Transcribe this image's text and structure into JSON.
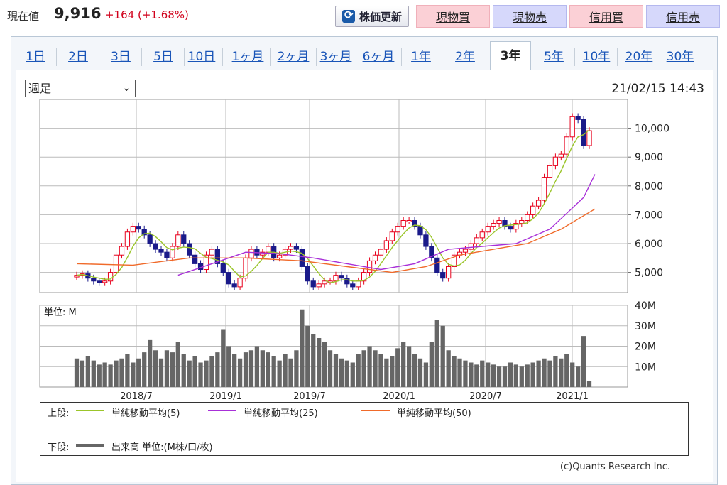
{
  "header": {
    "price_label": "現在値",
    "price_value": "9,916",
    "price_change": "+164 (+1.68%)",
    "refresh_label": "株価更新",
    "trade_buttons": [
      {
        "label": "現物買",
        "kind": "buy"
      },
      {
        "label": "現物売",
        "kind": "sell"
      },
      {
        "label": "信用買",
        "kind": "buy"
      },
      {
        "label": "信用売",
        "kind": "sell"
      }
    ]
  },
  "tabs": {
    "items": [
      "1日",
      "2日",
      "3日",
      "5日",
      "10日",
      "1ヶ月",
      "2ヶ月",
      "3ヶ月",
      "6ヶ月",
      "1年",
      "2年",
      "3年",
      "5年",
      "10年",
      "20年",
      "30年"
    ],
    "active": "3年"
  },
  "chart_controls": {
    "period_select": "週足",
    "timestamp": "21/02/15 14:43"
  },
  "colors": {
    "up_candle": "#e8001c",
    "down_candle": "#1a1a8a",
    "ma5": "#9bc52a",
    "ma25": "#a830d8",
    "ma50": "#f06a2a",
    "volume": "#666666"
  },
  "chart_data": [
    {
      "type": "candlestick",
      "x_ticks": [
        "2018/7",
        "2019/1",
        "2019/7",
        "2020/1",
        "2020/7",
        "2021/1"
      ],
      "y_ticks": [
        "5,000",
        "6,000",
        "7,000",
        "8,000",
        "9,000",
        "10,000"
      ],
      "ylim": [
        4300,
        11000
      ],
      "grid": true,
      "close_series": [
        4900,
        4950,
        4800,
        4700,
        4650,
        4700,
        5000,
        5600,
        5900,
        6400,
        6600,
        6500,
        6300,
        6000,
        5800,
        5700,
        5500,
        5900,
        6300,
        6000,
        5600,
        5300,
        5100,
        5600,
        5800,
        5300,
        5000,
        4600,
        4500,
        4800,
        5500,
        5800,
        5600,
        5700,
        5900,
        5500,
        5600,
        5800,
        5900,
        5800,
        5200,
        4700,
        4500,
        4600,
        4700,
        4700,
        4900,
        4800,
        4600,
        4500,
        4700,
        5000,
        5400,
        5600,
        5800,
        6100,
        6400,
        6600,
        6800,
        6800,
        6600,
        6300,
        5900,
        5500,
        5000,
        4800,
        5200,
        5600,
        5700,
        5800,
        6000,
        6200,
        6400,
        6600,
        6700,
        6800,
        6600,
        6500,
        6700,
        6800,
        7000,
        7300,
        7500,
        8300,
        8700,
        9000,
        9100,
        9700,
        10400,
        10300,
        9400,
        9916
      ],
      "series_legend": [
        {
          "name": "単純移動平均(5)",
          "color_key": "ma5"
        },
        {
          "name": "単純移動平均(25)",
          "color_key": "ma25"
        },
        {
          "name": "単純移動平均(50)",
          "color_key": "ma50"
        }
      ],
      "ma25_points": [
        [
          18,
          4900
        ],
        [
          24,
          5300
        ],
        [
          30,
          5700
        ],
        [
          36,
          5650
        ],
        [
          42,
          5500
        ],
        [
          48,
          5300
        ],
        [
          54,
          5100
        ],
        [
          60,
          5300
        ],
        [
          66,
          5800
        ],
        [
          72,
          5900
        ],
        [
          78,
          6000
        ],
        [
          84,
          6500
        ],
        [
          90,
          7600
        ],
        [
          92,
          8400
        ]
      ],
      "ma50_points": [
        [
          0,
          5300
        ],
        [
          10,
          5250
        ],
        [
          20,
          5500
        ],
        [
          30,
          5500
        ],
        [
          40,
          5400
        ],
        [
          50,
          5150
        ],
        [
          56,
          5000
        ],
        [
          62,
          5200
        ],
        [
          68,
          5600
        ],
        [
          74,
          5800
        ],
        [
          80,
          6000
        ],
        [
          86,
          6500
        ],
        [
          92,
          7200
        ]
      ]
    },
    {
      "type": "bar",
      "unit_label": "単位: M",
      "y_ticks": [
        "10M",
        "20M",
        "30M",
        "40M"
      ],
      "ylim": [
        0,
        40
      ],
      "values": [
        14,
        13,
        15,
        13,
        11,
        12,
        11,
        13,
        14,
        16,
        12,
        14,
        17,
        23,
        18,
        14,
        18,
        17,
        22,
        16,
        13,
        15,
        12,
        13,
        15,
        17,
        28,
        20,
        16,
        14,
        17,
        18,
        20,
        18,
        17,
        15,
        13,
        16,
        14,
        18,
        38,
        30,
        26,
        24,
        22,
        18,
        16,
        14,
        13,
        12,
        16,
        18,
        20,
        18,
        16,
        14,
        15,
        19,
        22,
        20,
        16,
        14,
        12,
        22,
        33,
        30,
        18,
        15,
        14,
        13,
        12,
        11,
        13,
        12,
        11,
        10,
        10,
        12,
        11,
        10,
        11,
        12,
        13,
        14,
        13,
        15,
        14,
        16,
        12,
        10,
        25,
        3
      ],
      "legend_upper_label": "上段:",
      "legend_lower_label": "下段:",
      "volume_legend": "出来高 単位:(M株/口/枚)"
    }
  ],
  "credit": "(c)Quants Research Inc."
}
